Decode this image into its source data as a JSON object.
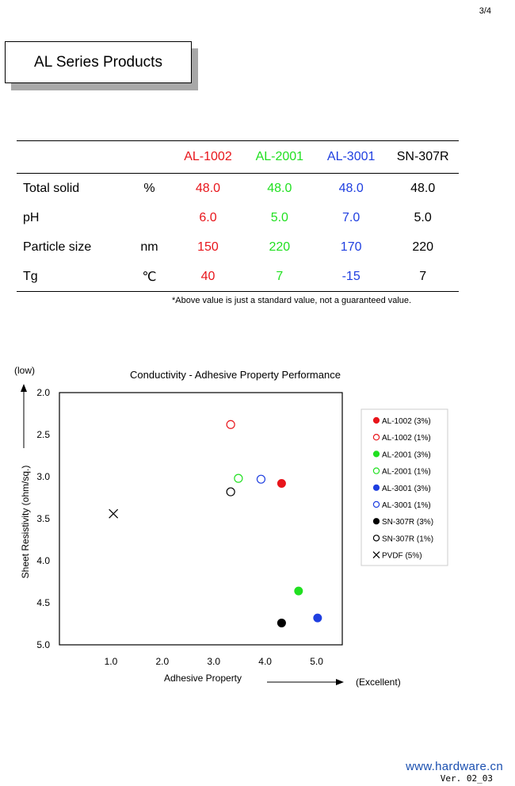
{
  "page": {
    "number": "3/4",
    "title": "AL Series Products",
    "brand": "www.hardware.cn",
    "version": "Ver. 02_03"
  },
  "colors": {
    "al1002": "#e8151b",
    "al2001": "#21e021",
    "al3001": "#1f3fe0",
    "sn307r": "#000000"
  },
  "table": {
    "headers": [
      "AL-1002",
      "AL-2001",
      "AL-3001",
      "SN-307R"
    ],
    "rows": [
      {
        "name": "Total solid",
        "unit": "%",
        "values": [
          "48.0",
          "48.0",
          "48.0",
          "48.0"
        ]
      },
      {
        "name": "pH",
        "unit": "",
        "values": [
          "6.0",
          "5.0",
          "7.0",
          "5.0"
        ]
      },
      {
        "name": "Particle size",
        "unit": "nm",
        "values": [
          "150",
          "220",
          "170",
          "220"
        ]
      },
      {
        "name": "Tg",
        "unit": "℃",
        "values": [
          "40",
          "7",
          "-15",
          "7"
        ]
      }
    ],
    "note": "*Above value is just a standard value, not a guaranteed value."
  },
  "chart_data": {
    "type": "scatter",
    "title": "Conductivity - Adhesive Property Performance",
    "xlabel": "Adhesive Property",
    "ylabel": "Sheet Resistivity (ohm/sq.)",
    "x_annotation": "(Excellent)",
    "y_annotation": "(low)",
    "xlim": [
      0.0,
      5.5
    ],
    "ylim": [
      2.0,
      5.0
    ],
    "y_inverted": true,
    "x_ticks": [
      "1.0",
      "2.0",
      "3.0",
      "4.0",
      "5.0"
    ],
    "y_ticks": [
      "2.0",
      "2.5",
      "3.0",
      "3.5",
      "4.0",
      "4.5",
      "5.0"
    ],
    "series": [
      {
        "name": "AL-1002 (3%)",
        "marker": "filled",
        "color": "#e8151b",
        "points": [
          [
            4.32,
            3.08
          ]
        ]
      },
      {
        "name": "AL-1002 (1%)",
        "marker": "open",
        "color": "#e8151b",
        "points": [
          [
            3.33,
            2.38
          ]
        ]
      },
      {
        "name": "AL-2001 (3%)",
        "marker": "filled",
        "color": "#21e021",
        "points": [
          [
            4.65,
            4.36
          ]
        ]
      },
      {
        "name": "AL-2001 (1%)",
        "marker": "open",
        "color": "#21e021",
        "points": [
          [
            3.48,
            3.02
          ]
        ]
      },
      {
        "name": "AL-3001 (3%)",
        "marker": "filled",
        "color": "#1f3fe0",
        "points": [
          [
            5.02,
            4.68
          ]
        ]
      },
      {
        "name": "AL-3001 (1%)",
        "marker": "open",
        "color": "#1f3fe0",
        "points": [
          [
            3.92,
            3.03
          ]
        ]
      },
      {
        "name": "SN-307R (3%)",
        "marker": "filled",
        "color": "#000000",
        "points": [
          [
            4.32,
            4.74
          ]
        ]
      },
      {
        "name": "SN-307R (1%)",
        "marker": "open",
        "color": "#000000",
        "points": [
          [
            3.33,
            3.18
          ]
        ]
      },
      {
        "name": "PVDF    (5%)",
        "marker": "cross",
        "color": "#000000",
        "points": [
          [
            1.05,
            3.44
          ]
        ]
      }
    ]
  }
}
